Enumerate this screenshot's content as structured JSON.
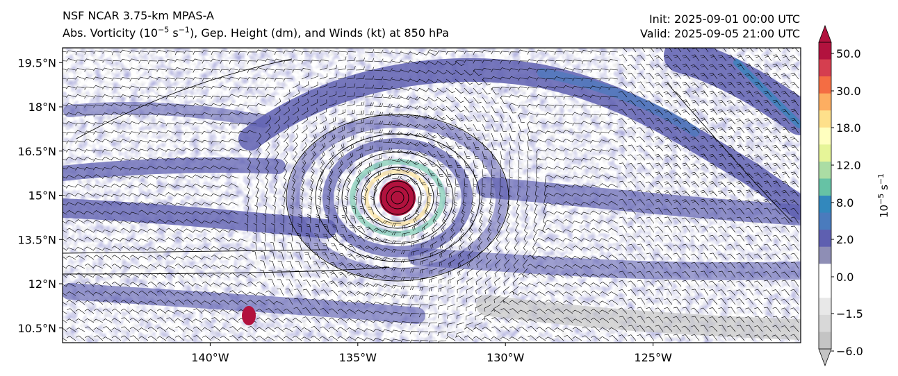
{
  "titles": {
    "left_line1": "NSF NCAR 3.75-km MPAS-A",
    "left_line2": {
      "prefix": "Abs. Vorticity (10",
      "sup1": "−5",
      "mid": " s",
      "sup2": "−1",
      "suffix": "), Gep. Height (dm), and Winds (kt) at 850 hPa"
    },
    "init": "Init: 2025-09-01 00:00 UTC",
    "valid": "Valid: 2025-09-05 21:00 UTC"
  },
  "map": {
    "lon_range": [
      -145,
      -120
    ],
    "lat_range": [
      10,
      20
    ],
    "lon_ticks": [
      {
        "value": -140,
        "label": "140°W"
      },
      {
        "value": -135,
        "label": "135°W"
      },
      {
        "value": -130,
        "label": "130°W"
      },
      {
        "value": -125,
        "label": "125°W"
      }
    ],
    "lat_ticks": [
      {
        "value": 19.5,
        "label": "19.5°N"
      },
      {
        "value": 18,
        "label": "18°N"
      },
      {
        "value": 16.5,
        "label": "16.5°N"
      },
      {
        "value": 15,
        "label": "15°N"
      },
      {
        "value": 13.5,
        "label": "13.5°N"
      },
      {
        "value": 12,
        "label": "12°N"
      },
      {
        "value": 10.5,
        "label": "10.5°N"
      }
    ],
    "cyclone_center": {
      "lon": -133.75,
      "lat": 14.85
    }
  },
  "colorbar": {
    "tick_labels": [
      "50.0",
      "30.0",
      "18.0",
      "12.0",
      "8.0",
      "2.0",
      "0.0",
      "−1.5",
      "−6.0"
    ],
    "label_base": "10",
    "label_sup1": "−5",
    "label_mid": " s",
    "label_sup2": "−1",
    "colors_top_to_bottom": [
      "#b2123e",
      "#d53e4f",
      "#f46d43",
      "#fdae61",
      "#fee08b",
      "#ffffbf",
      "#e6f598",
      "#abdda4",
      "#66c2a5",
      "#3288bd",
      "#4a7bbd",
      "#5e5fb0",
      "#8e8eb5",
      "#ffffff",
      "#ffffff",
      "#e8e8e8",
      "#d8d8d8",
      "#c4c4c4"
    ]
  }
}
